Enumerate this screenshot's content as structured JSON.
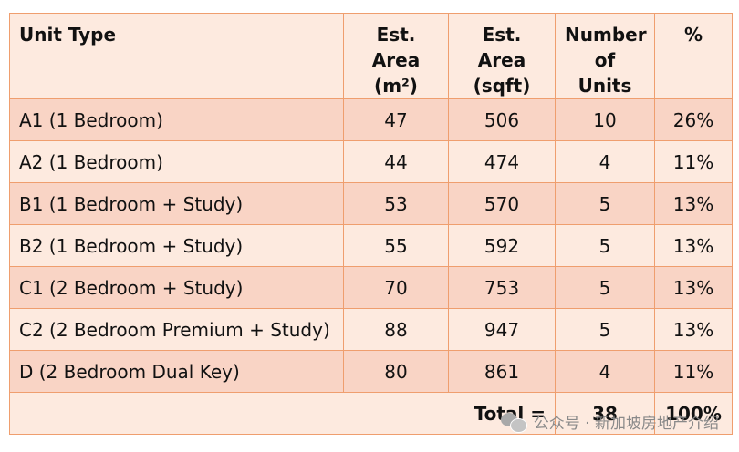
{
  "table": {
    "headers": {
      "unit_type": "Unit Type",
      "area_m2_line1": "Est. Area",
      "area_m2_line2": "(m²)",
      "area_sqft_line1": "Est. Area",
      "area_sqft_line2": "(sqft)",
      "units_line1": "Number",
      "units_line2": "of Units",
      "percent": "%"
    },
    "rows": [
      {
        "type": "A1 (1 Bedroom)",
        "m2": "47",
        "sqft": "506",
        "units": "10",
        "pct": "26%"
      },
      {
        "type": "A2 (1 Bedroom)",
        "m2": "44",
        "sqft": "474",
        "units": "4",
        "pct": "11%"
      },
      {
        "type": "B1 (1 Bedroom + Study)",
        "m2": "53",
        "sqft": "570",
        "units": "5",
        "pct": "13%"
      },
      {
        "type": "B2 (1 Bedroom + Study)",
        "m2": "55",
        "sqft": "592",
        "units": "5",
        "pct": "13%"
      },
      {
        "type": "C1 (2 Bedroom + Study)",
        "m2": "70",
        "sqft": "753",
        "units": "5",
        "pct": "13%"
      },
      {
        "type": "C2 (2 Bedroom Premium + Study)",
        "m2": "88",
        "sqft": "947",
        "units": "5",
        "pct": "13%"
      },
      {
        "type": "D (2 Bedroom Dual Key)",
        "m2": "80",
        "sqft": "861",
        "units": "4",
        "pct": "11%"
      }
    ],
    "total": {
      "label": "Total =",
      "units": "38",
      "pct": "100%"
    }
  },
  "watermark": {
    "text": "公众号 · 新加坡房地产介绍",
    "icon": "wechat-icon"
  },
  "colors": {
    "border": "#ef9e6e",
    "row_dark": "#f9d4c5",
    "row_light": "#fdeadf"
  }
}
